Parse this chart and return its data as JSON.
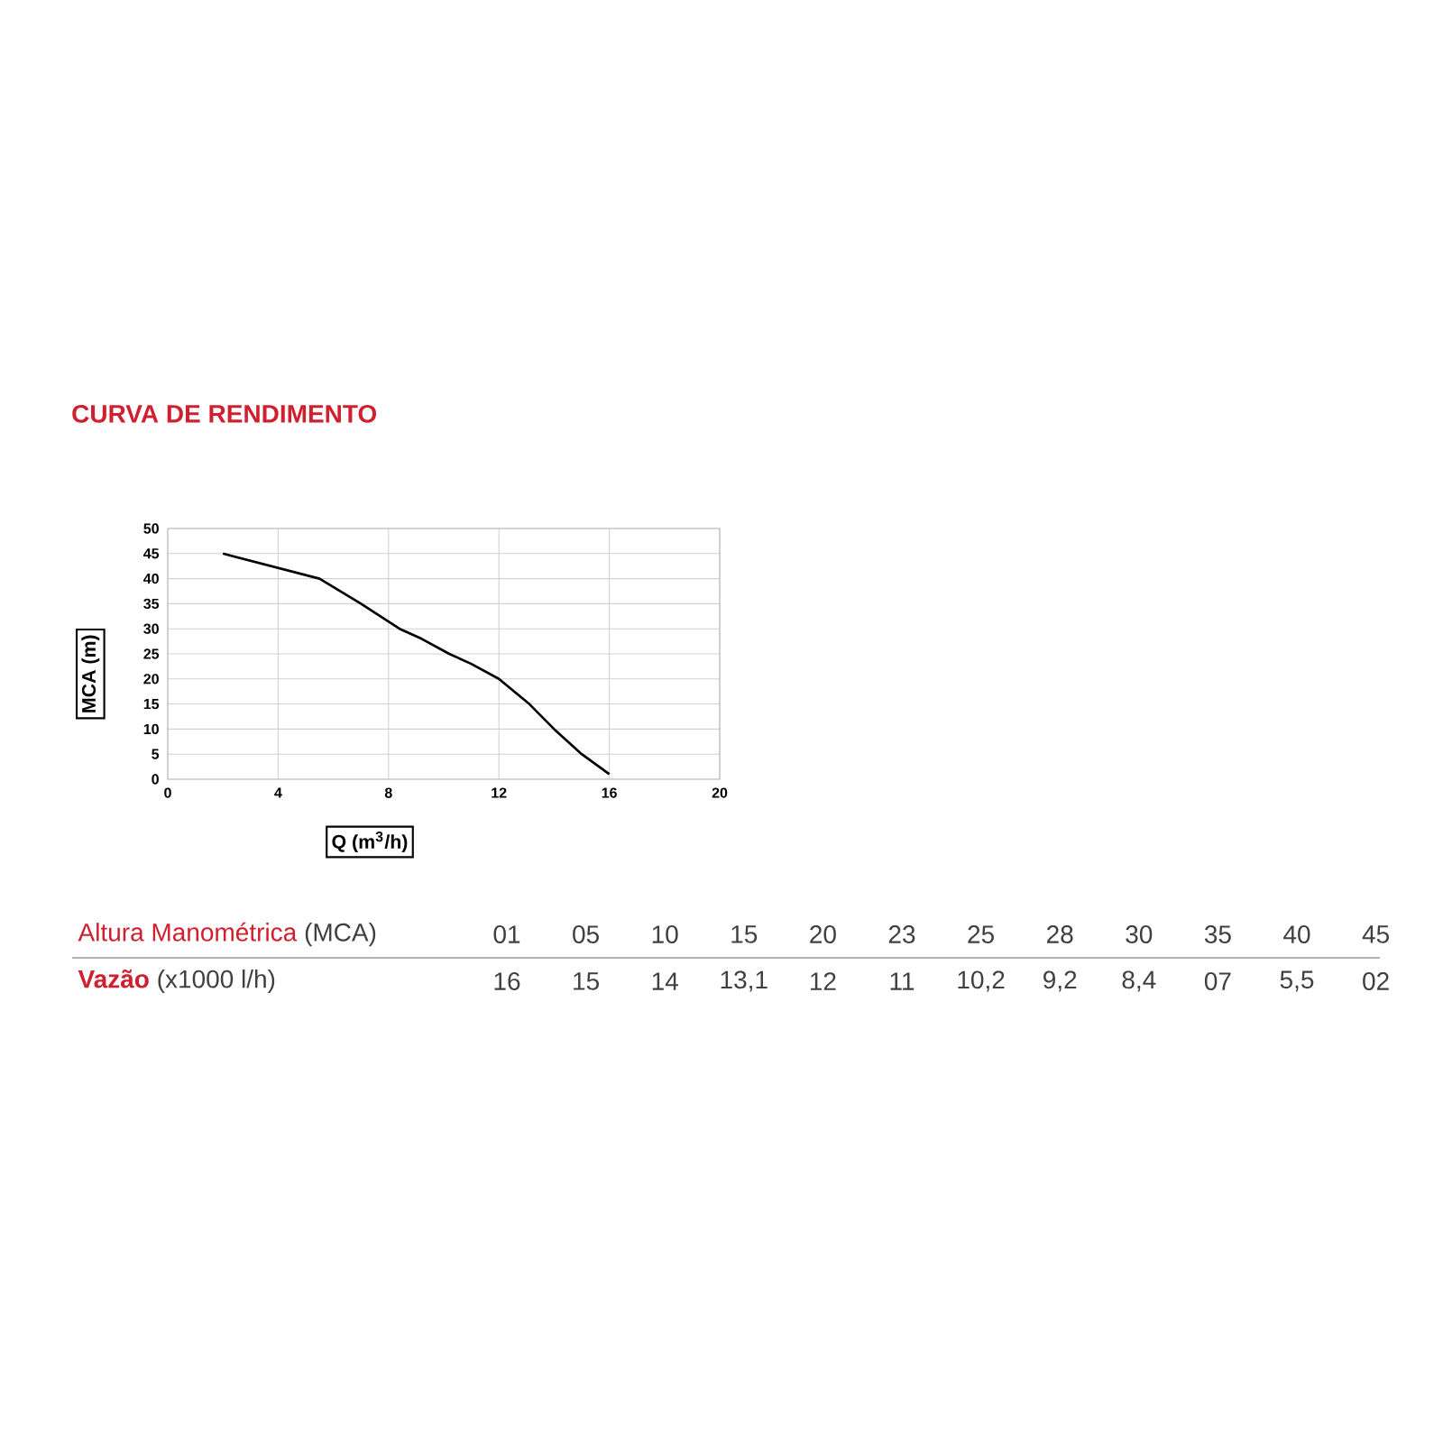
{
  "chart_data": [
    {
      "type": "line",
      "title": "CURVA DE RENDIMENTO",
      "xlabel": "Q (m$^{3}$/h)",
      "ylabel": "MCA (m)",
      "xlim": [
        0,
        20
      ],
      "xticks": [
        0,
        4,
        8,
        12,
        16,
        20
      ],
      "ylim": [
        0,
        50
      ],
      "yticks": [
        0,
        5,
        10,
        15,
        20,
        25,
        30,
        35,
        40,
        45,
        50
      ],
      "grid": true,
      "marker": "none",
      "line_style": "solid",
      "series": [
        {
          "color": "#000000",
          "x": [
            2,
            5.5,
            7,
            8.4,
            9.2,
            10.2,
            11,
            12,
            13.1,
            14,
            15,
            16
          ],
          "values": [
            45,
            40,
            35,
            30,
            28,
            25,
            23,
            20,
            15,
            10,
            5,
            1
          ]
        }
      ]
    },
    {
      "type": "other",
      "annotations": [
        "Altura Manométrica",
        "(MCA)",
        "Vazão",
        "(x1000 l/h)",
        "16",
        "15",
        "14",
        "13,1",
        "12",
        "11",
        "10,2",
        "9,2",
        "8,4",
        "07",
        "5,5",
        "02"
      ],
      "categories": [
        "01",
        "05",
        "10",
        "15",
        "20",
        "23",
        "25",
        "28",
        "30",
        "35",
        "40",
        "45"
      ]
    }
  ]
}
